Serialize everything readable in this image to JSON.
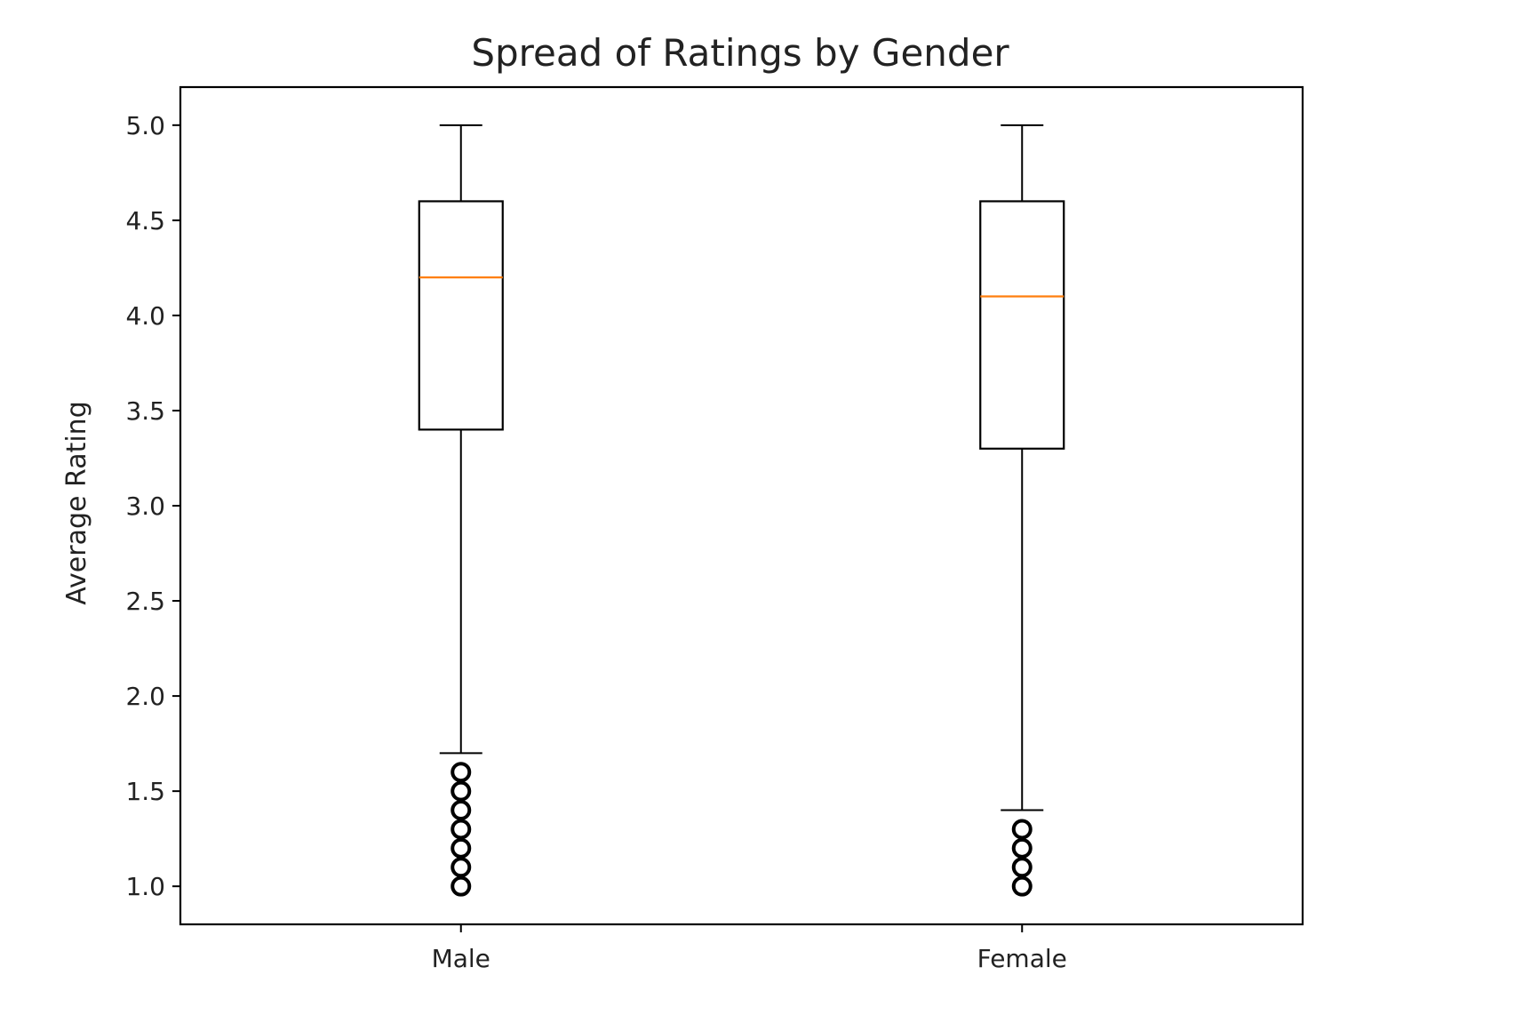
{
  "chart_data": {
    "type": "box",
    "title": "Spread of Ratings by Gender",
    "xlabel": "",
    "ylabel": "Average Rating",
    "ylim": [
      0.8,
      5.2
    ],
    "yticks": [
      1.0,
      1.5,
      2.0,
      2.5,
      3.0,
      3.5,
      4.0,
      4.5,
      5.0
    ],
    "ytick_labels": [
      "1.0",
      "1.5",
      "2.0",
      "2.5",
      "3.0",
      "3.5",
      "4.0",
      "4.5",
      "5.0"
    ],
    "categories": [
      "Male",
      "Female"
    ],
    "boxes": [
      {
        "category": "Male",
        "whisker_low": 1.7,
        "q1": 3.4,
        "median": 4.2,
        "q3": 4.6,
        "whisker_high": 5.0,
        "outliers": [
          1.0,
          1.1,
          1.2,
          1.3,
          1.4,
          1.5,
          1.6
        ]
      },
      {
        "category": "Female",
        "whisker_low": 1.4,
        "q1": 3.3,
        "median": 4.1,
        "q3": 4.6,
        "whisker_high": 5.0,
        "outliers": [
          1.0,
          1.1,
          1.2,
          1.3
        ]
      }
    ],
    "grid": false,
    "colors": {
      "box": "#000000",
      "median": "#ff7f0e",
      "outlier": "#000000",
      "axes": "#000000",
      "text": "#222222"
    }
  }
}
